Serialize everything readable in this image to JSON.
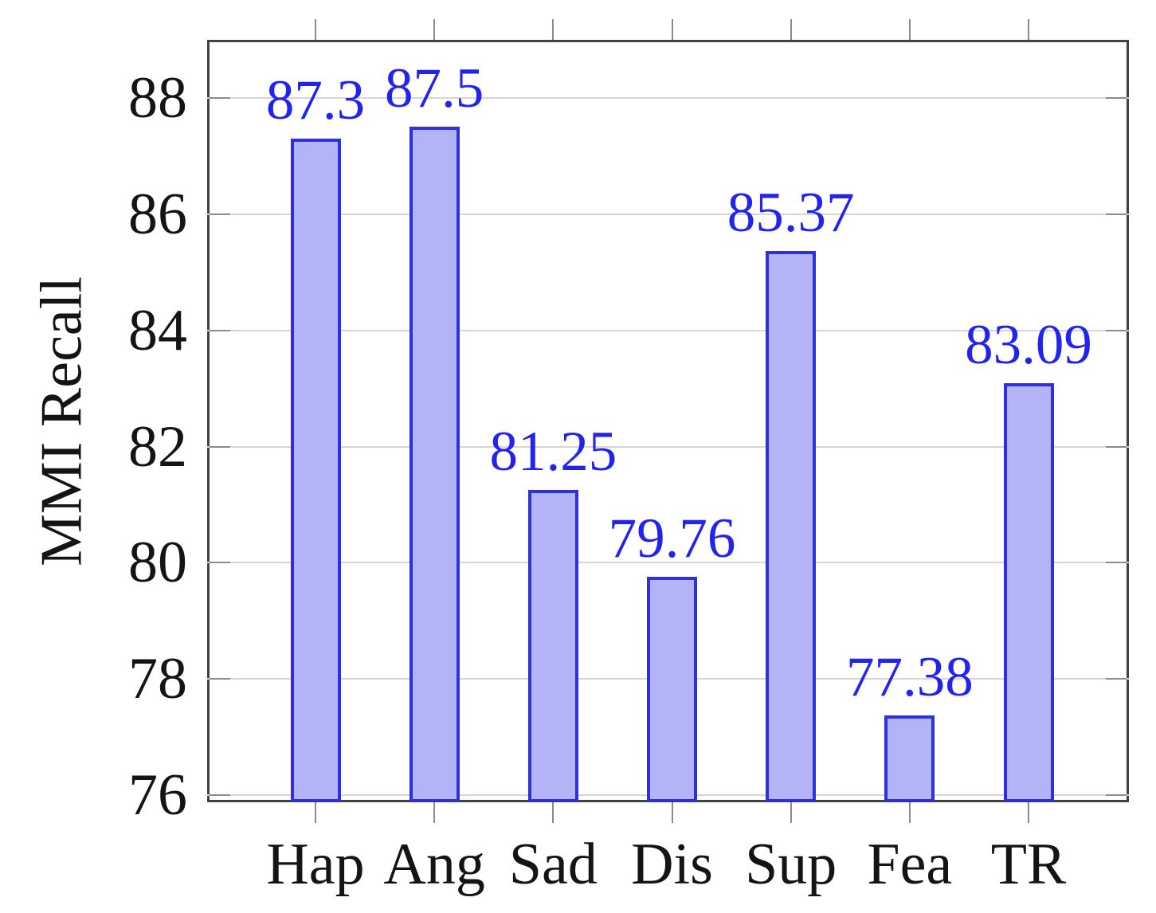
{
  "chart_data": {
    "type": "bar",
    "title": "",
    "ylabel": "MMI Recall",
    "xlabel": "",
    "categories": [
      "Hap",
      "Ang",
      "Sad",
      "Dis",
      "Sup",
      "Fea",
      "TR"
    ],
    "values": [
      87.3,
      87.5,
      81.25,
      79.76,
      85.37,
      77.38,
      83.09
    ],
    "value_labels": [
      "87.3",
      "87.5",
      "81.25",
      "79.76",
      "85.37",
      "77.38",
      "83.09"
    ],
    "yticks": [
      76,
      78,
      80,
      82,
      84,
      86,
      88
    ],
    "ylim": [
      75.88,
      89.0
    ],
    "grid": true,
    "legend_position": "none",
    "colors": {
      "bar_fill": "#b3b3f8",
      "bar_border": "#2f2fdd",
      "value_label": "#2323ee",
      "gridline": "#d6d6d6",
      "axis_frame": "#424242",
      "tick_mark": "#8a8a8a",
      "text": "#141414"
    }
  }
}
